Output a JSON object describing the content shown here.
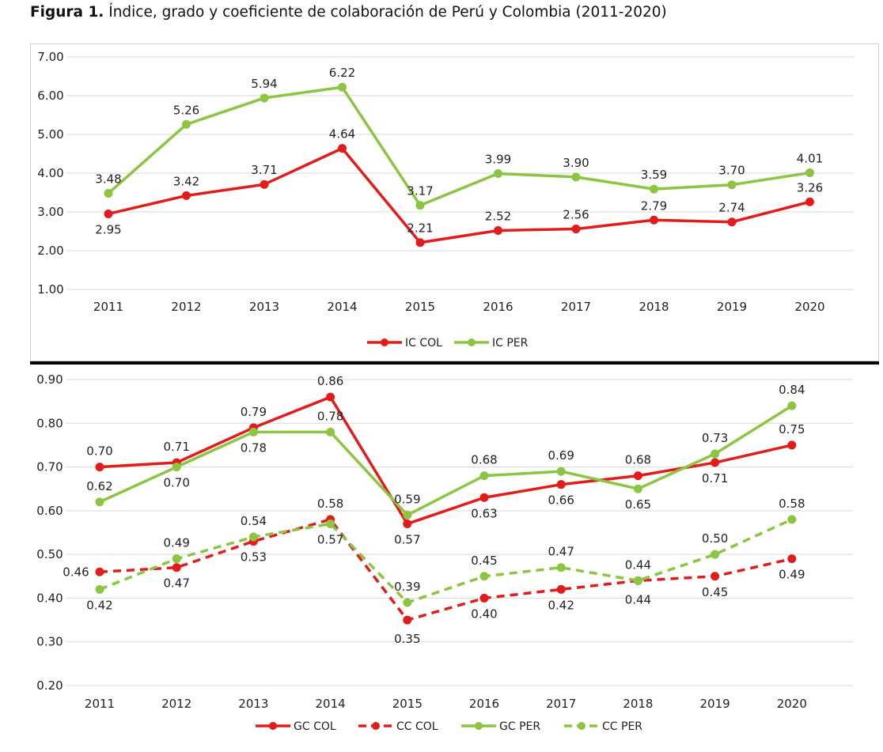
{
  "figure": {
    "label": "Figura 1.",
    "caption": "Índice, grado y coeficiente de colaboración de Perú y Colombia (2011-2020)"
  },
  "colors": {
    "col": "#e41b1b",
    "per": "#8bc541",
    "grid": "#d9d9d9",
    "text": "#222222"
  },
  "chart_data": [
    {
      "type": "line",
      "categories": [
        "2011",
        "2012",
        "2013",
        "2014",
        "2015",
        "2016",
        "2017",
        "2018",
        "2019",
        "2020"
      ],
      "ylim": [
        1.0,
        7.0
      ],
      "y_ticks": [
        "1.00",
        "2.00",
        "3.00",
        "4.00",
        "5.00",
        "6.00",
        "7.00"
      ],
      "grid": true,
      "legend_position": "bottom",
      "series": [
        {
          "name": "IC COL",
          "color": "#e41b1b",
          "dash": false,
          "values": [
            2.95,
            3.42,
            3.71,
            4.64,
            2.21,
            2.52,
            2.56,
            2.79,
            2.74,
            3.26
          ],
          "labels": [
            "2.95",
            "3.42",
            "3.71",
            "4.64",
            "2.21",
            "2.52",
            "2.56",
            "2.79",
            "2.74",
            "3.26"
          ]
        },
        {
          "name": "IC PER",
          "color": "#8bc541",
          "dash": false,
          "values": [
            3.48,
            5.26,
            5.94,
            6.22,
            3.17,
            3.99,
            3.9,
            3.59,
            3.7,
            4.01
          ],
          "labels": [
            "3.48",
            "5.26",
            "5.94",
            "6.22",
            "3.17",
            "3.99",
            "3.90",
            "3.59",
            "3.70",
            "4.01"
          ]
        }
      ]
    },
    {
      "type": "line",
      "categories": [
        "2011",
        "2012",
        "2013",
        "2014",
        "2015",
        "2016",
        "2017",
        "2018",
        "2019",
        "2020"
      ],
      "ylim": [
        0.2,
        0.9
      ],
      "y_ticks": [
        "0.20",
        "0.30",
        "0.40",
        "0.50",
        "0.60",
        "0.70",
        "0.80",
        "0.90"
      ],
      "grid": true,
      "legend_position": "bottom",
      "series": [
        {
          "name": "GC COL",
          "color": "#e41b1b",
          "dash": false,
          "values": [
            0.7,
            0.71,
            0.79,
            0.86,
            0.57,
            0.63,
            0.66,
            0.68,
            0.71,
            0.75
          ],
          "labels": [
            "0.70",
            "0.71",
            "0.79",
            "0.86",
            "0.57",
            "0.63",
            "0.66",
            "0.68",
            "0.71",
            "0.75"
          ]
        },
        {
          "name": "CC COL",
          "color": "#e41b1b",
          "dash": true,
          "values": [
            0.46,
            0.47,
            0.53,
            0.58,
            0.35,
            0.4,
            0.42,
            0.44,
            0.45,
            0.49
          ],
          "labels": [
            "0.46",
            "0.47",
            "0.53",
            "0.58",
            "0.35",
            "0.40",
            "0.42",
            "0.44",
            "0.45",
            "0.49"
          ]
        },
        {
          "name": "GC PER",
          "color": "#8bc541",
          "dash": false,
          "values": [
            0.62,
            0.7,
            0.78,
            0.78,
            0.59,
            0.68,
            0.69,
            0.65,
            0.73,
            0.84
          ],
          "labels": [
            "0.62",
            "0.70",
            "0.78",
            "0.78",
            "0.59",
            "0.68",
            "0.69",
            "0.65",
            "0.73",
            "0.84"
          ]
        },
        {
          "name": "CC PER",
          "color": "#8bc541",
          "dash": true,
          "values": [
            0.42,
            0.49,
            0.54,
            0.57,
            0.39,
            0.45,
            0.47,
            0.44,
            0.5,
            0.58
          ],
          "labels": [
            "0.42",
            "0.49",
            "0.54",
            "0.57",
            "0.39",
            "0.45",
            "0.47",
            "0.44",
            "0.50",
            "0.58"
          ]
        }
      ]
    }
  ]
}
